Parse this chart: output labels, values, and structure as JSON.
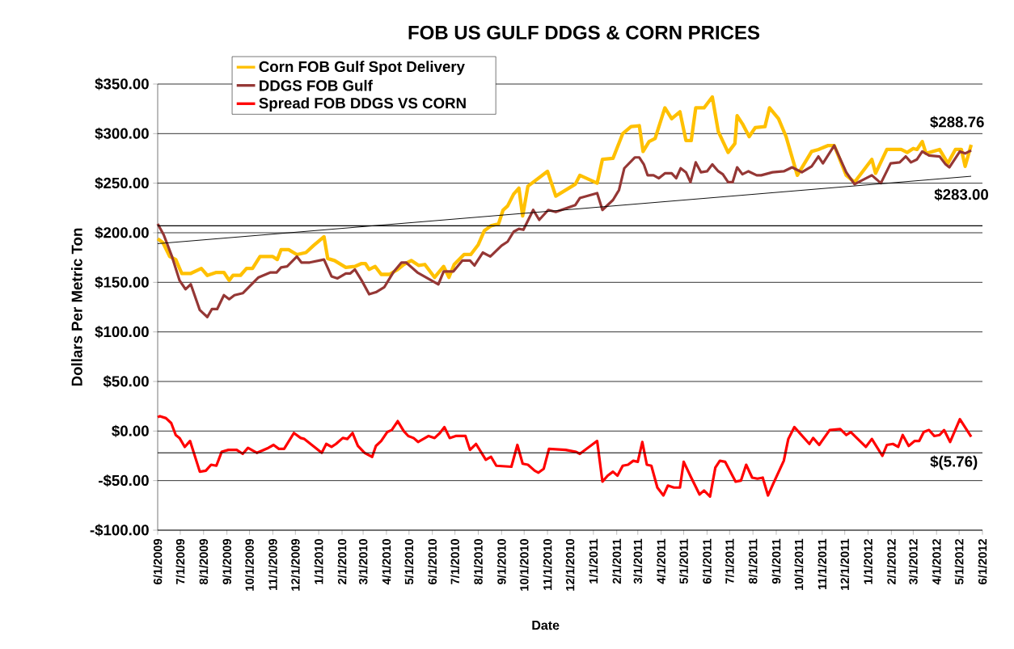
{
  "chart_data": {
    "type": "line",
    "title": "FOB US GULF DDGS & CORN PRICES",
    "xlabel": "Date",
    "ylabel": "Dollars Per Metric Ton",
    "xlim": [
      "2009-06-01",
      "2012-06-01"
    ],
    "xticks": [
      {
        "value": "2009-06-01",
        "label": "6/1/2009"
      },
      {
        "value": "2009-07-01",
        "label": "7/1/2009"
      },
      {
        "value": "2009-08-01",
        "label": "8/1/2009"
      },
      {
        "value": "2009-09-01",
        "label": "9/1/2009"
      },
      {
        "value": "2009-10-01",
        "label": "10/1/2009"
      },
      {
        "value": "2009-11-01",
        "label": "11/1/2009"
      },
      {
        "value": "2009-12-01",
        "label": "12/1/2009"
      },
      {
        "value": "2010-01-01",
        "label": "1/1/2010"
      },
      {
        "value": "2010-02-01",
        "label": "2/1/2010"
      },
      {
        "value": "2010-03-01",
        "label": "3/1/2010"
      },
      {
        "value": "2010-04-01",
        "label": "4/1/2010"
      },
      {
        "value": "2010-05-01",
        "label": "5/1/2010"
      },
      {
        "value": "2010-06-01",
        "label": "6/1/2010"
      },
      {
        "value": "2010-07-01",
        "label": "7/1/2010"
      },
      {
        "value": "2010-08-01",
        "label": "8/1/2010"
      },
      {
        "value": "2010-09-01",
        "label": "9/1/2010"
      },
      {
        "value": "2010-10-01",
        "label": "10/1/2010"
      },
      {
        "value": "2010-11-01",
        "label": "11/1/2010"
      },
      {
        "value": "2010-12-01",
        "label": "12/1/2010"
      },
      {
        "value": "2011-01-01",
        "label": "1/1/2011"
      },
      {
        "value": "2011-02-01",
        "label": "2/1/2011"
      },
      {
        "value": "2011-03-01",
        "label": "3/1/2011"
      },
      {
        "value": "2011-04-01",
        "label": "4/1/2011"
      },
      {
        "value": "2011-05-01",
        "label": "5/1/2011"
      },
      {
        "value": "2011-06-01",
        "label": "6/1/2011"
      },
      {
        "value": "2011-07-01",
        "label": "7/1/2011"
      },
      {
        "value": "2011-08-01",
        "label": "8/1/2011"
      },
      {
        "value": "2011-09-01",
        "label": "9/1/2011"
      },
      {
        "value": "2011-10-01",
        "label": "10/1/2011"
      },
      {
        "value": "2011-11-01",
        "label": "11/1/2011"
      },
      {
        "value": "2011-12-01",
        "label": "12/1/2011"
      },
      {
        "value": "2012-01-01",
        "label": "1/1/2012"
      },
      {
        "value": "2012-02-01",
        "label": "2/1/2012"
      },
      {
        "value": "2012-03-01",
        "label": "3/1/2012"
      },
      {
        "value": "2012-04-01",
        "label": "4/1/2012"
      },
      {
        "value": "2012-05-01",
        "label": "5/1/2012"
      },
      {
        "value": "2012-06-01",
        "label": "6/1/2012"
      }
    ],
    "ylim": [
      -100,
      350
    ],
    "yticks": [
      {
        "value": -100,
        "label": "-$100.00"
      },
      {
        "value": -50,
        "label": "-$50.00"
      },
      {
        "value": 0,
        "label": "$0.00"
      },
      {
        "value": 50,
        "label": "$50.00"
      },
      {
        "value": 100,
        "label": "$100.00"
      },
      {
        "value": 150,
        "label": "$150.00"
      },
      {
        "value": 200,
        "label": "$200.00"
      },
      {
        "value": 250,
        "label": "$250.00"
      },
      {
        "value": 300,
        "label": "$300.00"
      },
      {
        "value": 350,
        "label": "$350.00"
      }
    ],
    "grid": "y",
    "legend": "top left",
    "series": [
      {
        "name": "Corn FOB Gulf Spot Delivery",
        "color": "#ffc000",
        "x": [
          "2009-06-01",
          "2009-06-08",
          "2009-06-17",
          "2009-06-25",
          "2009-07-03",
          "2009-07-15",
          "2009-07-29",
          "2009-08-06",
          "2009-08-18",
          "2009-08-28",
          "2009-09-04",
          "2009-09-09",
          "2009-09-19",
          "2009-09-27",
          "2009-10-05",
          "2009-10-15",
          "2009-11-01",
          "2009-11-07",
          "2009-11-12",
          "2009-11-22",
          "2009-12-03",
          "2009-12-15",
          "2009-12-25",
          "2010-01-08",
          "2010-01-13",
          "2010-01-22",
          "2010-02-06",
          "2010-02-18",
          "2010-02-27",
          "2010-03-04",
          "2010-03-09",
          "2010-03-17",
          "2010-03-25",
          "2010-04-05",
          "2010-04-16",
          "2010-04-24",
          "2010-05-04",
          "2010-05-14",
          "2010-05-22",
          "2010-06-04",
          "2010-06-16",
          "2010-06-23",
          "2010-06-30",
          "2010-07-13",
          "2010-07-22",
          "2010-08-01",
          "2010-08-09",
          "2010-08-18",
          "2010-08-28",
          "2010-09-03",
          "2010-09-09",
          "2010-09-17",
          "2010-09-24",
          "2010-09-29",
          "2010-10-06",
          "2010-11-01",
          "2010-11-12",
          "2010-12-08",
          "2010-12-14",
          "2011-01-06",
          "2011-01-13",
          "2011-01-27",
          "2011-02-09",
          "2011-02-20",
          "2011-03-03",
          "2011-03-08",
          "2011-03-16",
          "2011-03-24",
          "2011-04-06",
          "2011-04-15",
          "2011-04-26",
          "2011-05-04",
          "2011-05-11",
          "2011-05-17",
          "2011-05-28",
          "2011-06-08",
          "2011-06-16",
          "2011-06-29",
          "2011-07-08",
          "2011-07-11",
          "2011-07-18",
          "2011-07-27",
          "2011-08-04",
          "2011-08-17",
          "2011-08-23",
          "2011-09-04",
          "2011-09-14",
          "2011-09-29",
          "2011-10-18",
          "2011-10-27",
          "2011-11-09",
          "2011-11-17",
          "2011-12-03",
          "2011-12-14",
          "2012-01-06",
          "2012-01-11",
          "2012-01-26",
          "2012-02-14",
          "2012-02-22",
          "2012-03-01",
          "2012-03-06",
          "2012-03-13",
          "2012-03-18",
          "2012-04-05",
          "2012-04-16",
          "2012-04-26",
          "2012-05-04",
          "2012-05-09",
          "2012-05-17"
        ],
        "values": [
          194,
          190,
          176,
          173,
          159,
          159,
          164,
          157,
          160,
          160,
          152,
          157,
          157,
          164,
          164,
          176,
          176,
          173,
          183,
          183,
          178,
          180,
          187,
          196,
          174,
          172,
          165,
          166,
          169,
          169,
          163,
          166,
          158,
          158,
          163,
          168,
          172,
          167,
          168,
          155,
          166,
          155,
          168,
          178,
          178,
          188,
          202,
          207,
          209,
          223,
          227,
          239,
          245,
          217,
          247,
          262,
          237,
          249,
          258,
          250,
          274,
          275,
          300,
          307,
          308,
          282,
          292,
          295,
          326,
          315,
          322,
          293,
          293,
          326,
          326,
          337,
          302,
          281,
          290,
          318,
          310,
          297,
          306,
          307,
          326,
          315,
          297,
          258,
          282,
          284,
          288,
          288,
          258,
          251,
          274,
          260,
          284,
          284,
          281,
          285,
          284,
          292,
          280,
          284,
          270,
          284,
          284,
          267,
          288.76
        ]
      },
      {
        "name": "DDGS FOB Gulf",
        "color": "#953735",
        "x": [
          "2009-06-01",
          "2009-06-09",
          "2009-06-20",
          "2009-06-30",
          "2009-07-08",
          "2009-07-15",
          "2009-07-27",
          "2009-08-06",
          "2009-08-12",
          "2009-08-19",
          "2009-08-28",
          "2009-09-04",
          "2009-09-11",
          "2009-09-22",
          "2009-10-13",
          "2009-10-29",
          "2009-11-06",
          "2009-11-12",
          "2009-11-20",
          "2009-12-03",
          "2009-12-09",
          "2009-12-20",
          "2010-01-08",
          "2010-01-18",
          "2010-01-26",
          "2010-02-06",
          "2010-02-12",
          "2010-02-18",
          "2010-02-27",
          "2010-03-09",
          "2010-03-18",
          "2010-03-29",
          "2010-04-10",
          "2010-04-21",
          "2010-04-27",
          "2010-05-12",
          "2010-06-09",
          "2010-06-16",
          "2010-06-29",
          "2010-07-11",
          "2010-07-21",
          "2010-07-27",
          "2010-08-07",
          "2010-08-17",
          "2010-09-01",
          "2010-09-09",
          "2010-09-17",
          "2010-09-24",
          "2010-09-30",
          "2010-10-13",
          "2010-10-21",
          "2010-11-02",
          "2010-11-12",
          "2010-12-08",
          "2010-12-14",
          "2011-01-06",
          "2011-01-13",
          "2011-01-27",
          "2011-02-04",
          "2011-02-11",
          "2011-02-25",
          "2011-03-03",
          "2011-03-09",
          "2011-03-14",
          "2011-03-22",
          "2011-03-29",
          "2011-04-06",
          "2011-04-15",
          "2011-04-21",
          "2011-04-27",
          "2011-05-04",
          "2011-05-10",
          "2011-05-17",
          "2011-05-24",
          "2011-06-01",
          "2011-06-08",
          "2011-06-16",
          "2011-06-22",
          "2011-06-29",
          "2011-07-05",
          "2011-07-11",
          "2011-07-18",
          "2011-07-26",
          "2011-08-06",
          "2011-08-12",
          "2011-08-27",
          "2011-09-11",
          "2011-09-22",
          "2011-10-05",
          "2011-10-18",
          "2011-10-27",
          "2011-11-02",
          "2011-11-17",
          "2011-12-03",
          "2011-12-14",
          "2012-01-06",
          "2012-01-18",
          "2012-01-31",
          "2012-02-12",
          "2012-02-20",
          "2012-02-27",
          "2012-03-06",
          "2012-03-13",
          "2012-03-22",
          "2012-04-05",
          "2012-04-13",
          "2012-04-18",
          "2012-05-02",
          "2012-05-09",
          "2012-05-17"
        ],
        "values": [
          209,
          198,
          176,
          152,
          143,
          148,
          122,
          115,
          123,
          123,
          137,
          133,
          137,
          139,
          155,
          160,
          160,
          165,
          166,
          176,
          170,
          170,
          173,
          156,
          154,
          159,
          159,
          163,
          152,
          138,
          140,
          145,
          160,
          170,
          170,
          160,
          148,
          161,
          161,
          172,
          172,
          167,
          180,
          176,
          187,
          191,
          201,
          204,
          203,
          223,
          213,
          223,
          221,
          228,
          235,
          240,
          223,
          233,
          243,
          265,
          276,
          276,
          269,
          258,
          258,
          255,
          260,
          260,
          255,
          265,
          261,
          251,
          271,
          261,
          262,
          269,
          262,
          259,
          251,
          251,
          266,
          259,
          262,
          258,
          258,
          261,
          262,
          266,
          261,
          267,
          277,
          270,
          288,
          261,
          249,
          258,
          250,
          270,
          271,
          277,
          271,
          274,
          282,
          278,
          277,
          269,
          266,
          282,
          280,
          283.0
        ]
      },
      {
        "name": "Spread FOB DDGS VS CORN",
        "color": "#ff0000",
        "x": [
          "2009-06-01",
          "2009-06-04",
          "2009-06-12",
          "2009-06-19",
          "2009-06-25",
          "2009-06-30",
          "2009-07-07",
          "2009-07-14",
          "2009-07-27",
          "2009-08-04",
          "2009-08-11",
          "2009-08-18",
          "2009-08-25",
          "2009-09-03",
          "2009-09-14",
          "2009-09-22",
          "2009-09-29",
          "2009-10-11",
          "2009-10-26",
          "2009-11-02",
          "2009-11-09",
          "2009-11-16",
          "2009-11-29",
          "2009-12-08",
          "2009-12-13",
          "2010-01-05",
          "2010-01-11",
          "2010-01-18",
          "2010-01-24",
          "2010-02-02",
          "2010-02-08",
          "2010-02-15",
          "2010-02-22",
          "2010-03-03",
          "2010-03-13",
          "2010-03-18",
          "2010-03-25",
          "2010-04-02",
          "2010-04-08",
          "2010-04-16",
          "2010-04-24",
          "2010-04-30",
          "2010-05-07",
          "2010-05-13",
          "2010-05-27",
          "2010-06-04",
          "2010-06-11",
          "2010-06-17",
          "2010-06-24",
          "2010-07-02",
          "2010-07-15",
          "2010-07-21",
          "2010-07-29",
          "2010-08-11",
          "2010-08-18",
          "2010-08-25",
          "2010-09-14",
          "2010-09-22",
          "2010-09-29",
          "2010-10-06",
          "2010-10-15",
          "2010-10-20",
          "2010-10-27",
          "2010-11-03",
          "2010-11-25",
          "2010-12-09",
          "2010-12-14",
          "2011-01-06",
          "2011-01-13",
          "2011-01-20",
          "2011-01-27",
          "2011-02-02",
          "2011-02-09",
          "2011-02-16",
          "2011-02-23",
          "2011-03-01",
          "2011-03-07",
          "2011-03-13",
          "2011-03-19",
          "2011-03-27",
          "2011-04-04",
          "2011-04-10",
          "2011-04-18",
          "2011-04-26",
          "2011-05-01",
          "2011-05-11",
          "2011-05-22",
          "2011-05-28",
          "2011-06-05",
          "2011-06-12",
          "2011-06-18",
          "2011-06-25",
          "2011-07-09",
          "2011-07-16",
          "2011-07-23",
          "2011-07-31",
          "2011-08-07",
          "2011-08-14",
          "2011-08-21",
          "2011-08-28",
          "2011-09-11",
          "2011-09-17",
          "2011-09-25",
          "2011-10-15",
          "2011-10-20",
          "2011-10-28",
          "2011-11-11",
          "2011-11-25",
          "2011-12-03",
          "2011-12-09",
          "2011-12-29",
          "2012-01-06",
          "2012-01-20",
          "2012-01-26",
          "2012-02-03",
          "2012-02-10",
          "2012-02-16",
          "2012-02-24",
          "2012-03-03",
          "2012-03-09",
          "2012-03-15",
          "2012-03-22",
          "2012-03-29",
          "2012-04-05",
          "2012-04-11",
          "2012-04-19",
          "2012-05-02",
          "2012-05-17"
        ],
        "values": [
          14,
          15,
          13,
          8,
          -4,
          -7,
          -16,
          -10,
          -41,
          -40,
          -34,
          -35,
          -21,
          -19,
          -19,
          -23,
          -17,
          -22,
          -17,
          -14,
          -18,
          -18,
          -2,
          -7,
          -8,
          -22,
          -13,
          -16,
          -13,
          -7,
          -8,
          -2,
          -15,
          -22,
          -26,
          -15,
          -10,
          -1,
          1,
          10,
          0,
          -5,
          -7,
          -11,
          -5,
          -7,
          -2,
          4,
          -7,
          -5,
          -5,
          -19,
          -13,
          -29,
          -26,
          -35,
          -36,
          -14,
          -33,
          -34,
          -40,
          -42,
          -38,
          -18,
          -19,
          -21,
          -23,
          -10,
          -51,
          -45,
          -41,
          -45,
          -35,
          -34,
          -30,
          -31,
          -11,
          -34,
          -35,
          -57,
          -65,
          -55,
          -57,
          -57,
          -31,
          -47,
          -64,
          -60,
          -66,
          -37,
          -30,
          -31,
          -51,
          -50,
          -34,
          -47,
          -48,
          -47,
          -65,
          -53,
          -30,
          -8,
          4,
          -13,
          -7,
          -14,
          1,
          2,
          -4,
          -1,
          -16,
          -8,
          -25,
          -14,
          -13,
          -16,
          -4,
          -15,
          -10,
          -10,
          -1,
          1,
          -5,
          -4,
          1,
          -11,
          12,
          -5.76
        ]
      },
      {
        "type": "line",
        "color": "#000000",
        "x": [
          "2009-06-01",
          "2012-05-17"
        ],
        "values": [
          189,
          257
        ]
      }
    ],
    "ref_lines": [
      {
        "axis": "y",
        "value": 207
      },
      {
        "axis": "y",
        "value": -22
      }
    ],
    "annotations": [
      {
        "text": "$288.76",
        "x": "2012-05-17",
        "y": 288.76
      },
      {
        "text": "$283.00",
        "x": "2012-05-17",
        "y": 283.0
      },
      {
        "text": "$(5.76)",
        "x": "2012-05-17",
        "y": -5.76
      }
    ]
  }
}
